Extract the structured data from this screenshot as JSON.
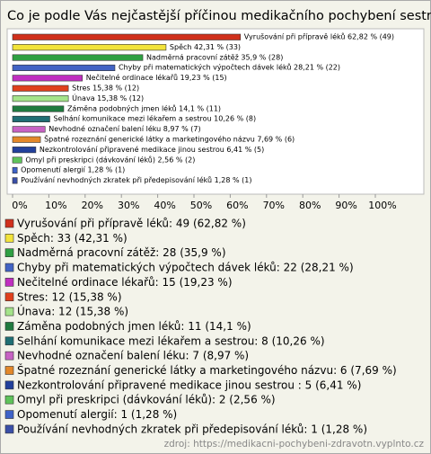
{
  "chart_data": {
    "type": "bar",
    "orientation": "horizontal",
    "title": "Co je podle Vás nejčastější příčinou medikačního pochybení sestry?",
    "values": [
      62.82,
      42.31,
      35.9,
      28.21,
      19.23,
      15.38,
      15.38,
      14.1,
      10.26,
      8.97,
      7.69,
      6.41,
      2.56,
      1.28,
      1.28
    ],
    "value_labels": [
      "Vyrušování při přípravě léků 62,82 % (49)",
      "Spěch 42,31 % (33)",
      "Nadměrná pracovní zátěž 35,9 % (28)",
      "Chyby při matematických výpočtech dávek léků 28,21 % (22)",
      "Nečitelné ordinace lékařů 19,23 % (15)",
      "Stres 15,38 % (12)",
      "Únava 15,38 % (12)",
      "Záměna podobných jmen léků 14,1 % (11)",
      "Selhání komunikace mezi lékařem a sestrou 10,26 % (8)",
      "Nevhodné označení balení léku 8,97 % (7)",
      "Špatné rozeznání generické látky a marketingového názvu 7,69 % (6)",
      "Nezkontrolování připravené medikace jinou sestrou  6,41 % (5)",
      "Omyl při preskripci (dávkování léků) 2,56 % (2)",
      "Opomenutí alergií 1,28 % (1)",
      "Používání nevhodných zkratek při předepisování léků 1,28 % (1)"
    ],
    "legend_labels": [
      "Vyrušování při přípravě léků: 49 (62,82 %)",
      "Spěch: 33 (42,31 %)",
      "Nadměrná pracovní zátěž: 28 (35,9 %)",
      "Chyby při matematických výpočtech dávek léků: 22 (28,21 %)",
      "Nečitelné ordinace lékařů: 15 (19,23 %)",
      "Stres: 12 (15,38 %)",
      "Únava: 12 (15,38 %)",
      "Záměna podobných jmen léků: 11 (14,1 %)",
      "Selhání komunikace mezi lékařem a sestrou: 8 (10,26 %)",
      "Nevhodné označení balení léku: 7 (8,97 %)",
      "Špatné rozeznání generické látky a marketingového názvu: 6 (7,69 %)",
      "Nezkontrolování připravené medikace jinou sestrou : 5 (6,41 %)",
      "Omyl při preskripci (dávkování léků): 2 (2,56 %)",
      "Opomenutí alergií: 1 (1,28 %)",
      "Používání nevhodných zkratek při předepisování léků: 1 (1,28 %)"
    ],
    "colors": [
      "#d0301c",
      "#f2e33a",
      "#2fa043",
      "#4263c4",
      "#c02fc0",
      "#e0401c",
      "#a4e38a",
      "#1f7a3f",
      "#1f6e74",
      "#c763c4",
      "#e3882a",
      "#22409c",
      "#5fc35b",
      "#3e62c8",
      "#3a4fa8"
    ],
    "xlim": [
      0,
      100
    ],
    "xticks": [
      {
        "value": 0,
        "label": "0%"
      },
      {
        "value": 10,
        "label": "10%"
      },
      {
        "value": 20,
        "label": "20%"
      },
      {
        "value": 30,
        "label": "30%"
      },
      {
        "value": 40,
        "label": "40%"
      },
      {
        "value": 50,
        "label": "50%"
      },
      {
        "value": 60,
        "label": "60%"
      },
      {
        "value": 70,
        "label": "70%"
      },
      {
        "value": 80,
        "label": "80%"
      },
      {
        "value": 90,
        "label": "90%"
      },
      {
        "value": 100,
        "label": "100%"
      }
    ],
    "source": "zdroj: https://medikacni-pochybeni-zdravotn.vyplnto.cz"
  }
}
